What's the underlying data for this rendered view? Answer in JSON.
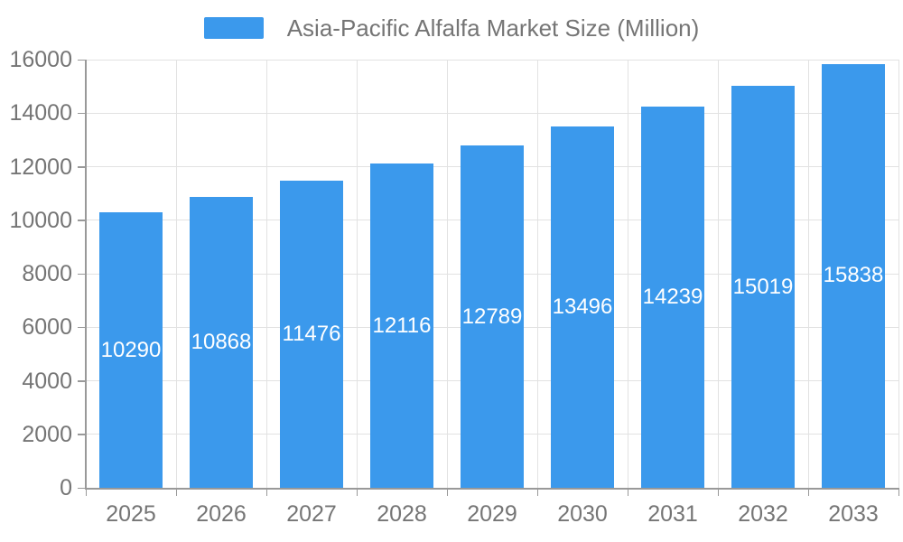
{
  "chart_data": {
    "type": "bar",
    "title": "Asia-Pacific Alfalfa Market Size (Million)",
    "series_name": "Asia-Pacific Alfalfa Market Size (Million)",
    "categories": [
      "2025",
      "2026",
      "2027",
      "2028",
      "2029",
      "2030",
      "2031",
      "2032",
      "2033"
    ],
    "values": [
      10290,
      10868,
      11476,
      12116,
      12789,
      13496,
      14239,
      15019,
      15838
    ],
    "xlabel": "",
    "ylabel": "",
    "ylim": [
      0,
      16000
    ],
    "ytick_step": 2000,
    "ytick_labels": [
      "0",
      "2000",
      "4000",
      "6000",
      "8000",
      "10000",
      "12000",
      "14000",
      "16000"
    ],
    "grid": true,
    "legend_position": "top-center",
    "bar_label_position": "inside-center",
    "colors": {
      "bar": "#3B99EC",
      "bar_label_text": "#FFFFFF",
      "grid_line": "#E2E2E2",
      "axis_line": "#999999",
      "axis_text": "#757575",
      "legend_text": "#757575",
      "background": "#FFFFFF"
    }
  }
}
